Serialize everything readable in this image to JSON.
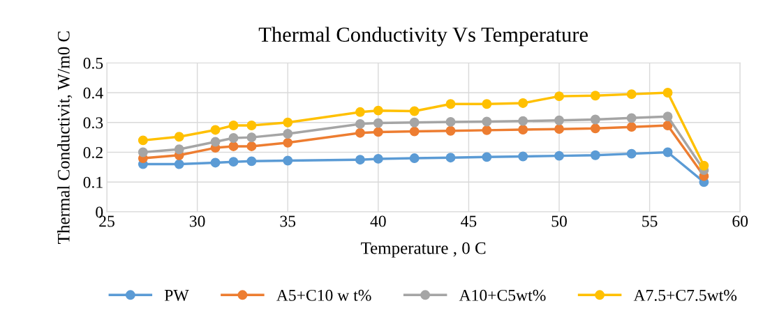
{
  "chart_data": {
    "type": "line",
    "title": "Thermal Conductivity Vs Temperature",
    "xlabel": "Temperature , 0 C",
    "ylabel": "Thermal Conductivit, W/m0 C",
    "x": [
      27,
      29,
      31,
      32,
      33,
      35,
      39,
      40,
      42,
      44,
      46,
      48,
      50,
      52,
      54,
      56,
      58
    ],
    "series": [
      {
        "name": "PW",
        "color": "#5b9bd5",
        "values": [
          0.16,
          0.16,
          0.165,
          0.168,
          0.17,
          0.172,
          0.175,
          0.178,
          0.18,
          0.182,
          0.184,
          0.186,
          0.188,
          0.19,
          0.195,
          0.2,
          0.1
        ]
      },
      {
        "name": "A5+C10 w t%",
        "color": "#ed7d31",
        "values": [
          0.18,
          0.19,
          0.215,
          0.22,
          0.22,
          0.232,
          0.265,
          0.268,
          0.27,
          0.272,
          0.274,
          0.276,
          0.278,
          0.28,
          0.285,
          0.29,
          0.12
        ]
      },
      {
        "name": "A10+C5wt%",
        "color": "#a5a5a5",
        "values": [
          0.2,
          0.21,
          0.235,
          0.248,
          0.25,
          0.262,
          0.295,
          0.298,
          0.3,
          0.302,
          0.303,
          0.305,
          0.307,
          0.31,
          0.315,
          0.32,
          0.14
        ]
      },
      {
        "name": "A7.5+C7.5wt%",
        "color": "#ffc000",
        "values": [
          0.24,
          0.252,
          0.275,
          0.29,
          0.29,
          0.3,
          0.335,
          0.34,
          0.338,
          0.362,
          0.362,
          0.365,
          0.388,
          0.39,
          0.395,
          0.4,
          0.155
        ]
      }
    ],
    "xlim": [
      25,
      60
    ],
    "xticks": [
      25,
      30,
      35,
      40,
      45,
      50,
      55,
      60
    ],
    "ylim": [
      0,
      0.5
    ],
    "yticks": [
      {
        "value": 0,
        "label": "0"
      },
      {
        "value": 0.1,
        "label": "0.1"
      },
      {
        "value": 0.2,
        "label": "0.2"
      },
      {
        "value": 0.3,
        "label": "0.3"
      },
      {
        "value": 0.4,
        "label": "0.4"
      },
      {
        "value": 0.5,
        "label": "0.5"
      }
    ],
    "grid": true,
    "legend": "bottom",
    "marker": "circle",
    "line_style": "solid"
  }
}
